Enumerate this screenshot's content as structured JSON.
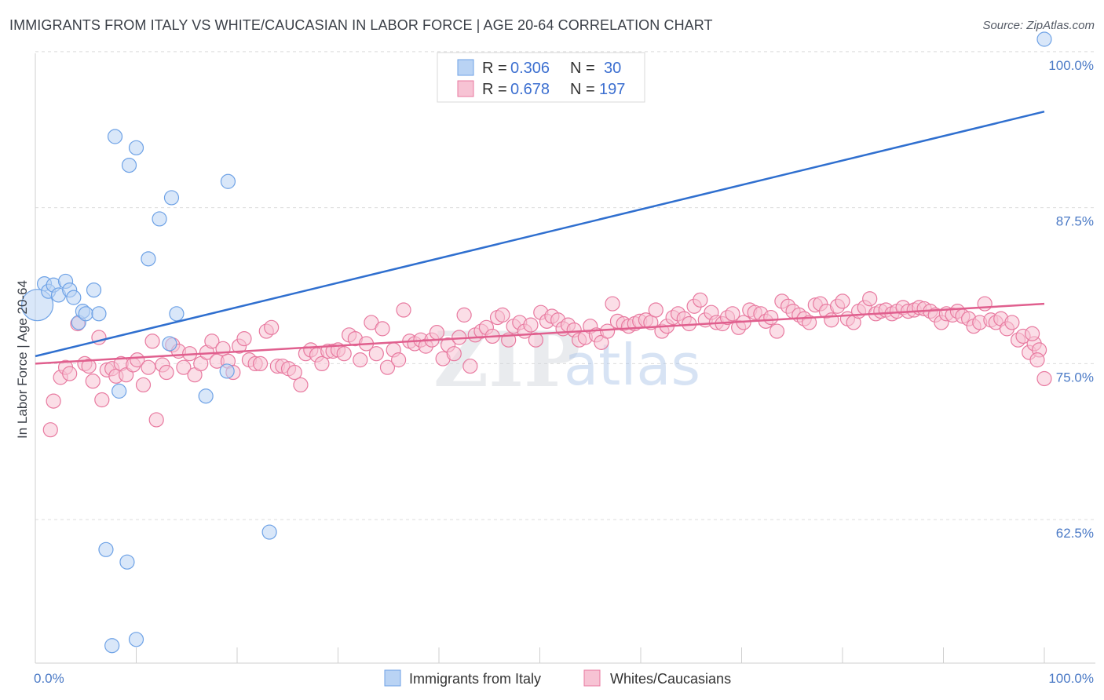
{
  "header": {
    "title": "IMMIGRANTS FROM ITALY VS WHITE/CAUCASIAN IN LABOR FORCE | AGE 20-64 CORRELATION CHART",
    "source": "Source: ZipAtlas.com"
  },
  "watermark": {
    "zip": "ZIP",
    "atlas": "atlas"
  },
  "chart_data": {
    "type": "scatter",
    "title": "IMMIGRANTS FROM ITALY VS WHITE/CAUCASIAN IN LABOR FORCE | AGE 20-64 CORRELATION CHART",
    "ylabel": "In Labor Force | Age 20-64",
    "xlabel": "",
    "xlim": [
      0,
      100
    ],
    "ylim": [
      51,
      101
    ],
    "x_tick_labels": [
      "0.0%",
      "100.0%"
    ],
    "y_ticks": [
      62.5,
      75.0,
      87.5,
      100.0
    ],
    "y_tick_labels": [
      "62.5%",
      "75.0%",
      "87.5%",
      "100.0%"
    ],
    "grid": "horizontal-dashed",
    "legend": {
      "placement": "top-center",
      "rows": [
        {
          "r_label": "R =",
          "r_value": "0.306",
          "n_label": "N =",
          "n_value": "30"
        },
        {
          "r_label": "R =",
          "r_value": "0.678",
          "n_label": "N =",
          "n_value": "197"
        }
      ]
    },
    "series": [
      {
        "name": "Immigrants from Italy",
        "color": "#6ea2e6",
        "fill": "#b9d3f4",
        "trend": [
          [
            0,
            75.6
          ],
          [
            100,
            95.2
          ]
        ],
        "points": [
          [
            0.2,
            79.7
          ],
          [
            0.9,
            81.4
          ],
          [
            1.3,
            80.8
          ],
          [
            1.8,
            81.3
          ],
          [
            2.3,
            80.5
          ],
          [
            3.0,
            81.6
          ],
          [
            3.4,
            80.9
          ],
          [
            3.8,
            80.3
          ],
          [
            4.3,
            78.3
          ],
          [
            4.7,
            79.2
          ],
          [
            5.0,
            79.0
          ],
          [
            5.8,
            80.9
          ],
          [
            6.3,
            79.0
          ],
          [
            7.9,
            93.2
          ],
          [
            9.3,
            90.9
          ],
          [
            10.0,
            92.3
          ],
          [
            11.2,
            83.4
          ],
          [
            12.3,
            86.6
          ],
          [
            13.5,
            88.3
          ],
          [
            13.3,
            76.6
          ],
          [
            14.0,
            79.0
          ],
          [
            19.1,
            89.6
          ],
          [
            23.2,
            61.5
          ],
          [
            7.0,
            60.1
          ],
          [
            9.1,
            59.1
          ],
          [
            7.6,
            52.4
          ],
          [
            10.0,
            52.9
          ],
          [
            8.3,
            72.8
          ],
          [
            16.9,
            72.4
          ],
          [
            19.0,
            74.4
          ],
          [
            100.0,
            101.0
          ]
        ]
      },
      {
        "name": "Whites/Caucasians",
        "color": "#e87aa0",
        "fill": "#f7c3d4",
        "trend": [
          [
            0,
            75.0
          ],
          [
            100,
            79.8
          ]
        ],
        "points": [
          [
            1.5,
            69.7
          ],
          [
            1.8,
            72.0
          ],
          [
            2.5,
            73.9
          ],
          [
            3.0,
            74.7
          ],
          [
            3.4,
            74.2
          ],
          [
            4.2,
            78.2
          ],
          [
            4.9,
            75.0
          ],
          [
            5.3,
            74.8
          ],
          [
            5.7,
            73.6
          ],
          [
            6.3,
            77.1
          ],
          [
            6.6,
            72.1
          ],
          [
            7.1,
            74.5
          ],
          [
            7.6,
            74.6
          ],
          [
            8.0,
            74.0
          ],
          [
            8.5,
            75.0
          ],
          [
            9.0,
            74.1
          ],
          [
            9.7,
            74.9
          ],
          [
            10.1,
            75.3
          ],
          [
            10.7,
            73.3
          ],
          [
            11.2,
            74.7
          ],
          [
            11.6,
            76.8
          ],
          [
            12.0,
            70.5
          ],
          [
            12.6,
            74.9
          ],
          [
            13.0,
            74.3
          ],
          [
            13.6,
            76.5
          ],
          [
            14.2,
            76.0
          ],
          [
            14.7,
            74.7
          ],
          [
            15.3,
            75.8
          ],
          [
            15.8,
            74.1
          ],
          [
            16.4,
            75.0
          ],
          [
            17.0,
            75.9
          ],
          [
            17.5,
            76.8
          ],
          [
            18.0,
            75.2
          ],
          [
            18.6,
            76.2
          ],
          [
            19.1,
            75.2
          ],
          [
            19.6,
            74.3
          ],
          [
            20.2,
            76.4
          ],
          [
            20.7,
            77.0
          ],
          [
            21.2,
            75.3
          ],
          [
            21.8,
            75.0
          ],
          [
            22.3,
            75.0
          ],
          [
            22.9,
            77.6
          ],
          [
            23.4,
            77.9
          ],
          [
            24.0,
            74.8
          ],
          [
            24.5,
            74.8
          ],
          [
            25.1,
            74.6
          ],
          [
            25.7,
            74.3
          ],
          [
            26.3,
            73.3
          ],
          [
            26.8,
            75.8
          ],
          [
            27.3,
            76.1
          ],
          [
            27.9,
            75.7
          ],
          [
            28.4,
            75.0
          ],
          [
            29.0,
            76.0
          ],
          [
            29.5,
            76.0
          ],
          [
            30.0,
            76.1
          ],
          [
            30.6,
            75.8
          ],
          [
            31.1,
            77.3
          ],
          [
            31.7,
            77.0
          ],
          [
            32.2,
            75.3
          ],
          [
            32.8,
            76.6
          ],
          [
            33.3,
            78.3
          ],
          [
            33.8,
            75.8
          ],
          [
            34.4,
            77.8
          ],
          [
            34.9,
            74.7
          ],
          [
            35.5,
            76.1
          ],
          [
            36.0,
            75.3
          ],
          [
            36.5,
            79.3
          ],
          [
            37.1,
            76.8
          ],
          [
            37.6,
            76.6
          ],
          [
            38.2,
            76.9
          ],
          [
            38.7,
            76.4
          ],
          [
            39.3,
            76.9
          ],
          [
            39.8,
            77.5
          ],
          [
            40.4,
            75.4
          ],
          [
            40.9,
            76.5
          ],
          [
            41.5,
            75.8
          ],
          [
            42.0,
            77.1
          ],
          [
            42.5,
            78.9
          ],
          [
            43.1,
            74.8
          ],
          [
            43.6,
            77.3
          ],
          [
            44.2,
            77.6
          ],
          [
            44.7,
            77.9
          ],
          [
            45.3,
            77.2
          ],
          [
            45.8,
            78.7
          ],
          [
            46.3,
            78.9
          ],
          [
            46.9,
            76.9
          ],
          [
            47.4,
            78.0
          ],
          [
            48.0,
            78.3
          ],
          [
            48.5,
            77.6
          ],
          [
            49.1,
            78.1
          ],
          [
            49.6,
            76.9
          ],
          [
            50.1,
            79.1
          ],
          [
            50.7,
            78.4
          ],
          [
            51.2,
            78.8
          ],
          [
            51.8,
            78.5
          ],
          [
            52.3,
            77.8
          ],
          [
            52.8,
            78.1
          ],
          [
            53.4,
            77.7
          ],
          [
            53.9,
            76.9
          ],
          [
            54.5,
            77.1
          ],
          [
            55.0,
            78.0
          ],
          [
            55.6,
            77.3
          ],
          [
            56.1,
            76.7
          ],
          [
            56.7,
            77.6
          ],
          [
            57.2,
            79.8
          ],
          [
            57.7,
            78.4
          ],
          [
            58.3,
            78.2
          ],
          [
            58.8,
            78.0
          ],
          [
            59.4,
            78.2
          ],
          [
            59.9,
            78.4
          ],
          [
            60.5,
            78.5
          ],
          [
            61.0,
            78.3
          ],
          [
            61.5,
            79.3
          ],
          [
            62.1,
            77.6
          ],
          [
            62.6,
            78.0
          ],
          [
            63.2,
            78.7
          ],
          [
            63.7,
            79.0
          ],
          [
            64.3,
            78.6
          ],
          [
            64.8,
            78.2
          ],
          [
            65.3,
            79.6
          ],
          [
            65.9,
            80.1
          ],
          [
            66.4,
            78.5
          ],
          [
            67.0,
            79.1
          ],
          [
            67.5,
            78.3
          ],
          [
            68.1,
            78.2
          ],
          [
            68.6,
            78.7
          ],
          [
            69.1,
            79.0
          ],
          [
            69.7,
            77.9
          ],
          [
            70.2,
            78.3
          ],
          [
            70.8,
            79.3
          ],
          [
            71.3,
            79.1
          ],
          [
            71.9,
            79.0
          ],
          [
            72.4,
            78.4
          ],
          [
            72.9,
            78.7
          ],
          [
            73.5,
            77.6
          ],
          [
            74.0,
            80.0
          ],
          [
            74.6,
            79.6
          ],
          [
            75.1,
            79.2
          ],
          [
            75.7,
            78.9
          ],
          [
            76.2,
            78.6
          ],
          [
            76.7,
            78.3
          ],
          [
            77.3,
            79.7
          ],
          [
            77.8,
            79.8
          ],
          [
            78.4,
            79.2
          ],
          [
            78.9,
            78.5
          ],
          [
            79.5,
            79.6
          ],
          [
            80.0,
            80.0
          ],
          [
            80.5,
            78.6
          ],
          [
            81.1,
            78.3
          ],
          [
            81.6,
            79.2
          ],
          [
            82.2,
            79.5
          ],
          [
            82.7,
            80.2
          ],
          [
            83.3,
            79.0
          ],
          [
            83.8,
            79.2
          ],
          [
            84.3,
            79.3
          ],
          [
            84.9,
            79.0
          ],
          [
            85.4,
            79.2
          ],
          [
            86.0,
            79.5
          ],
          [
            86.5,
            79.2
          ],
          [
            87.1,
            79.3
          ],
          [
            87.6,
            79.5
          ],
          [
            88.1,
            79.4
          ],
          [
            88.7,
            79.2
          ],
          [
            89.2,
            78.9
          ],
          [
            89.8,
            78.3
          ],
          [
            90.3,
            79.0
          ],
          [
            90.9,
            78.9
          ],
          [
            91.4,
            79.2
          ],
          [
            91.9,
            78.8
          ],
          [
            92.5,
            78.6
          ],
          [
            93.0,
            78.0
          ],
          [
            93.6,
            78.3
          ],
          [
            94.1,
            79.8
          ],
          [
            94.7,
            78.5
          ],
          [
            95.2,
            78.3
          ],
          [
            95.7,
            78.6
          ],
          [
            96.3,
            77.8
          ],
          [
            96.8,
            78.3
          ],
          [
            97.4,
            76.9
          ],
          [
            97.9,
            77.2
          ],
          [
            98.5,
            75.9
          ],
          [
            99.0,
            76.6
          ],
          [
            99.5,
            76.1
          ],
          [
            100.0,
            73.8
          ],
          [
            98.8,
            77.4
          ],
          [
            99.3,
            75.3
          ]
        ]
      }
    ]
  },
  "bottom_legend": [
    {
      "label": "Immigrants from Italy",
      "fill": "#b9d3f4",
      "stroke": "#6ea2e6"
    },
    {
      "label": "Whites/Caucasians",
      "fill": "#f7c3d4",
      "stroke": "#e87aa0"
    }
  ]
}
